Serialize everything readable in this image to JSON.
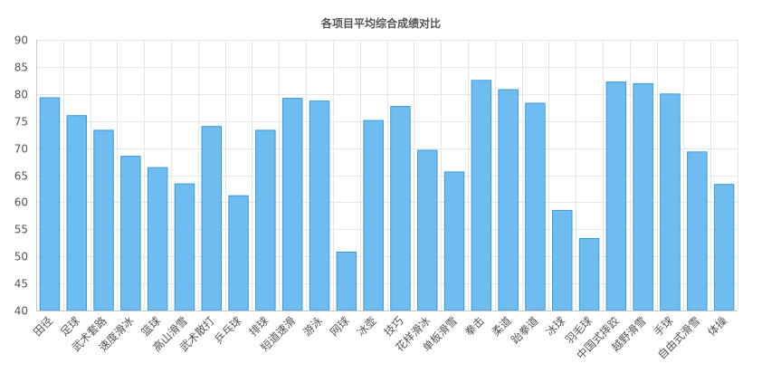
{
  "chart_data": {
    "type": "bar",
    "title": "各项目平均综合成绩对比",
    "xlabel": "",
    "ylabel": "",
    "ylim": [
      40,
      90
    ],
    "yticks": [
      40,
      45,
      50,
      55,
      60,
      65,
      70,
      75,
      80,
      85,
      90
    ],
    "grid": true,
    "colors": {
      "bar_fill": "#6fbcf0",
      "bar_stroke": "#3d9ad8"
    },
    "categories": [
      "田径",
      "足球",
      "武术套路",
      "速度滑冰",
      "篮球",
      "高山滑雪",
      "武术散打",
      "乒乓球",
      "排球",
      "短道速滑",
      "游泳",
      "网球",
      "冰壶",
      "技巧",
      "花样滑冰",
      "单板滑雪",
      "拳击",
      "柔道",
      "跆拳道",
      "冰球",
      "羽毛球",
      "中国式摔跤",
      "越野滑雪",
      "手球",
      "自由式滑雪",
      "体操"
    ],
    "values": [
      79.3,
      76.0,
      73.3,
      68.5,
      66.4,
      63.4,
      74.0,
      61.2,
      73.3,
      79.2,
      78.7,
      50.8,
      75.1,
      77.7,
      69.6,
      65.6,
      82.5,
      80.8,
      78.3,
      58.5,
      53.3,
      82.2,
      81.9,
      80.0,
      69.3,
      63.3
    ]
  }
}
